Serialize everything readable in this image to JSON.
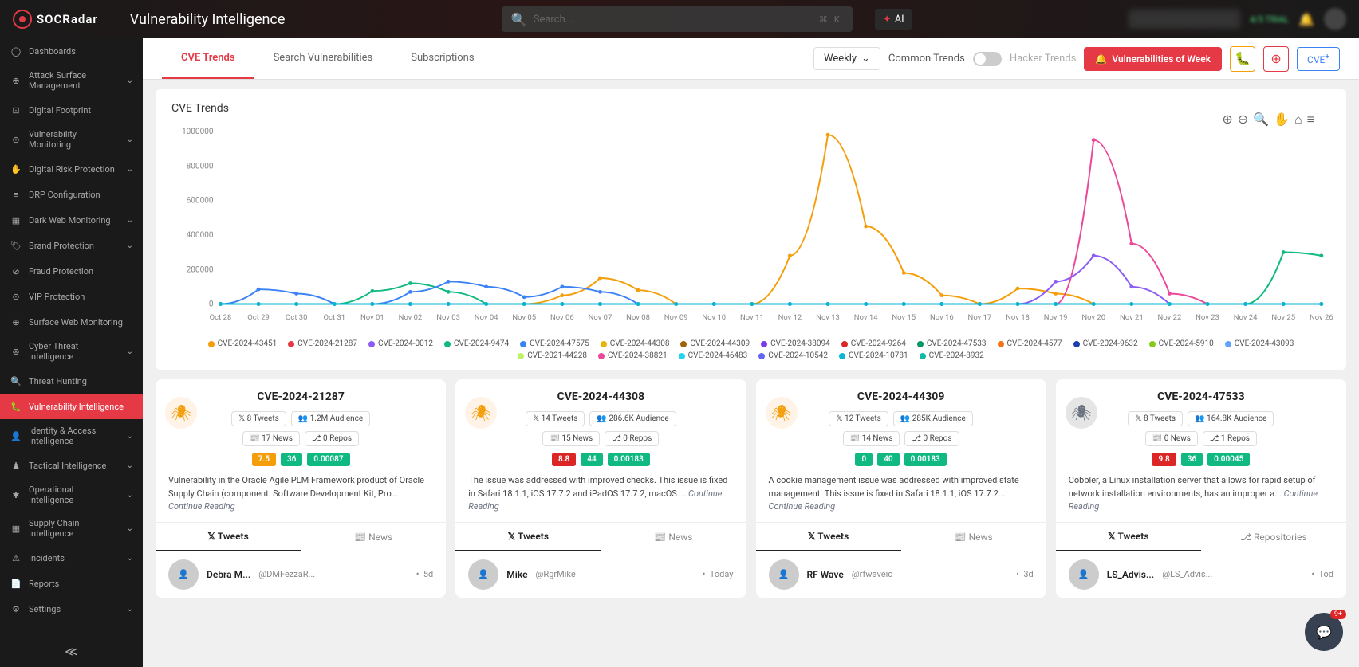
{
  "header": {
    "logo_text": "SOCRadar",
    "page_title": "Vulnerability Intelligence",
    "search_placeholder": "Search...",
    "search_hint_cmd": "⌘",
    "search_hint_k": "K",
    "ai_label": "AI",
    "trial_text": "4/5 TRIAL"
  },
  "sidebar": {
    "items": [
      {
        "label": "Dashboards",
        "icon": "◯",
        "chevron": false
      },
      {
        "label": "Attack Surface Management",
        "icon": "⊕",
        "chevron": true
      },
      {
        "label": "Digital Footprint",
        "icon": "⊡",
        "chevron": false
      },
      {
        "label": "Vulnerability Monitoring",
        "icon": "⊙",
        "chevron": true
      },
      {
        "label": "Digital Risk Protection",
        "icon": "✋",
        "chevron": true
      },
      {
        "label": "DRP Configuration",
        "icon": "≡",
        "chevron": false
      },
      {
        "label": "Dark Web Monitoring",
        "icon": "▦",
        "chevron": true
      },
      {
        "label": "Brand Protection",
        "icon": "🏷",
        "chevron": true
      },
      {
        "label": "Fraud Protection",
        "icon": "⊘",
        "chevron": false
      },
      {
        "label": "VIP Protection",
        "icon": "⊙",
        "chevron": false
      },
      {
        "label": "Surface Web Monitoring",
        "icon": "⊕",
        "chevron": false
      },
      {
        "label": "Cyber Threat Intelligence",
        "icon": "⊛",
        "chevron": true
      },
      {
        "label": "Threat Hunting",
        "icon": "🔍",
        "chevron": false
      },
      {
        "label": "Vulnerability Intelligence",
        "icon": "🐛",
        "chevron": false,
        "active": true
      },
      {
        "label": "Identity & Access Intelligence",
        "icon": "👤",
        "chevron": true
      },
      {
        "label": "Tactical Intelligence",
        "icon": "♟",
        "chevron": true
      },
      {
        "label": "Operational Intelligence",
        "icon": "✱",
        "chevron": true
      },
      {
        "label": "Supply Chain Intelligence",
        "icon": "▦",
        "chevron": true
      },
      {
        "label": "Incidents",
        "icon": "⚠",
        "chevron": true
      },
      {
        "label": "Reports",
        "icon": "📄",
        "chevron": false
      },
      {
        "label": "Settings",
        "icon": "⚙",
        "chevron": true
      }
    ]
  },
  "tabs": {
    "items": [
      "CVE Trends",
      "Search Vulnerabilities",
      "Subscriptions"
    ],
    "active": "CVE Trends",
    "dropdown": "Weekly",
    "common_trends": "Common Trends",
    "hacker_trends": "Hacker Trends",
    "vuln_week": "Vulnerabilities of Week",
    "cve_plus": "CVE"
  },
  "chart": {
    "title": "CVE Trends",
    "y_ticks": [
      "1000000",
      "800000",
      "600000",
      "400000",
      "200000",
      "0"
    ],
    "x_ticks": [
      "Oct 28",
      "Oct 29",
      "Oct 30",
      "Oct 31",
      "Nov 01",
      "Nov 02",
      "Nov 03",
      "Nov 04",
      "Nov 05",
      "Nov 06",
      "Nov 07",
      "Nov 08",
      "Nov 09",
      "Nov 10",
      "Nov 11",
      "Nov 12",
      "Nov 13",
      "Nov 14",
      "Nov 15",
      "Nov 16",
      "Nov 17",
      "Nov 18",
      "Nov 19",
      "Nov 20",
      "Nov 21",
      "Nov 22",
      "Nov 23",
      "Nov 24",
      "Nov 25",
      "Nov 26"
    ],
    "ylim_max": 1000000,
    "legend": [
      {
        "label": "CVE-2024-43451",
        "color": "#f59e0b"
      },
      {
        "label": "CVE-2024-21287",
        "color": "#e63946"
      },
      {
        "label": "CVE-2024-0012",
        "color": "#8b5cf6"
      },
      {
        "label": "CVE-2024-9474",
        "color": "#10b981"
      },
      {
        "label": "CVE-2024-47575",
        "color": "#3b82f6"
      },
      {
        "label": "CVE-2024-44308",
        "color": "#eab308"
      },
      {
        "label": "CVE-2024-44309",
        "color": "#a16207"
      },
      {
        "label": "CVE-2024-38094",
        "color": "#7c3aed"
      },
      {
        "label": "CVE-2024-9264",
        "color": "#dc2626"
      },
      {
        "label": "CVE-2024-47533",
        "color": "#059669"
      },
      {
        "label": "CVE-2024-4577",
        "color": "#f97316"
      },
      {
        "label": "CVE-2024-9632",
        "color": "#1e40af"
      },
      {
        "label": "CVE-2024-5910",
        "color": "#84cc16"
      },
      {
        "label": "CVE-2024-43093",
        "color": "#60a5fa"
      },
      {
        "label": "CVE-2021-44228",
        "color": "#bef264"
      },
      {
        "label": "CVE-2024-38821",
        "color": "#ec4899"
      },
      {
        "label": "CVE-2024-46483",
        "color": "#22d3ee"
      },
      {
        "label": "CVE-2024-10542",
        "color": "#6366f1"
      },
      {
        "label": "CVE-2024-10781",
        "color": "#06b6d4"
      },
      {
        "label": "CVE-2024-8932",
        "color": "#14b8a6"
      }
    ],
    "series": [
      {
        "color": "#f59e0b",
        "data": [
          0,
          0,
          0,
          0,
          0,
          0,
          0,
          0,
          0,
          50000,
          150000,
          80000,
          0,
          0,
          0,
          280000,
          980000,
          450000,
          180000,
          50000,
          0,
          90000,
          60000,
          0,
          0,
          0,
          0,
          0,
          0,
          0
        ]
      },
      {
        "color": "#ec4899",
        "data": [
          0,
          0,
          0,
          0,
          0,
          0,
          0,
          0,
          0,
          0,
          0,
          0,
          0,
          0,
          0,
          0,
          0,
          0,
          0,
          0,
          0,
          0,
          0,
          950000,
          350000,
          60000,
          0,
          0,
          0,
          0
        ]
      },
      {
        "color": "#8b5cf6",
        "data": [
          0,
          0,
          0,
          0,
          0,
          0,
          0,
          0,
          0,
          0,
          0,
          0,
          0,
          0,
          0,
          0,
          0,
          0,
          0,
          0,
          0,
          0,
          130000,
          280000,
          100000,
          0,
          0,
          0,
          0,
          0
        ]
      },
      {
        "color": "#10b981",
        "data": [
          0,
          0,
          0,
          0,
          75000,
          120000,
          70000,
          0,
          0,
          0,
          0,
          0,
          0,
          0,
          0,
          0,
          0,
          0,
          0,
          0,
          0,
          0,
          0,
          0,
          0,
          0,
          0,
          0,
          300000,
          280000
        ]
      },
      {
        "color": "#3b82f6",
        "data": [
          0,
          85000,
          60000,
          0,
          0,
          70000,
          130000,
          100000,
          40000,
          100000,
          70000,
          0,
          0,
          0,
          0,
          0,
          0,
          0,
          0,
          0,
          0,
          0,
          0,
          0,
          0,
          0,
          0,
          0,
          0,
          0
        ]
      },
      {
        "color": "#14b8a6",
        "data": [
          0,
          0,
          0,
          0,
          0,
          0,
          0,
          0,
          0,
          0,
          0,
          0,
          0,
          0,
          0,
          0,
          0,
          0,
          0,
          0,
          0,
          0,
          0,
          0,
          0,
          0,
          0,
          0,
          0,
          0
        ]
      },
      {
        "color": "#06b6d4",
        "data": [
          0,
          0,
          0,
          0,
          0,
          0,
          0,
          0,
          0,
          0,
          0,
          0,
          0,
          0,
          0,
          0,
          0,
          0,
          0,
          0,
          0,
          0,
          0,
          0,
          0,
          0,
          0,
          0,
          0,
          0
        ]
      }
    ]
  },
  "cards": [
    {
      "id": "CVE-2024-21287",
      "bug_color": "#f59e0b",
      "tweets": "8 Tweets",
      "audience": "1.2M Audience",
      "news": "17 News",
      "repos": "0 Repos",
      "scores": [
        {
          "v": "7.5",
          "c": "orange"
        },
        {
          "v": "36",
          "c": "green"
        },
        {
          "v": "0.00087",
          "c": "green"
        }
      ],
      "desc": "Vulnerability in the Oracle Agile PLM Framework product of Oracle Supply Chain (component: Software Development Kit, Pro... ",
      "continue": "Continue Reading",
      "tabs": [
        "Tweets",
        "News"
      ],
      "active_tab": "Tweets",
      "tweet": {
        "name": "Debra M...",
        "handle": "@DMFezzaR...",
        "time": "5d"
      }
    },
    {
      "id": "CVE-2024-44308",
      "bug_color": "#f59e0b",
      "tweets": "14 Tweets",
      "audience": "286.6K Audience",
      "news": "15 News",
      "repos": "0 Repos",
      "scores": [
        {
          "v": "8.8",
          "c": "red"
        },
        {
          "v": "44",
          "c": "green"
        },
        {
          "v": "0.00183",
          "c": "green"
        }
      ],
      "desc": "The issue was addressed with improved checks. This issue is fixed in Safari 18.1.1, iOS 17.7.2 and iPadOS 17.7.2, macOS ... ",
      "continue": "Continue Reading",
      "tabs": [
        "Tweets",
        "News"
      ],
      "active_tab": "Tweets",
      "tweet": {
        "name": "Mike",
        "handle": "@RgrMike",
        "time": "Today"
      }
    },
    {
      "id": "CVE-2024-44309",
      "bug_color": "#f59e0b",
      "tweets": "12 Tweets",
      "audience": "285K Audience",
      "news": "14 News",
      "repos": "0 Repos",
      "scores": [
        {
          "v": "0",
          "c": "green"
        },
        {
          "v": "40",
          "c": "green"
        },
        {
          "v": "0.00183",
          "c": "green"
        }
      ],
      "desc": "A cookie management issue was addressed with improved state management. This issue is fixed in Safari 18.1.1, iOS 17.7.2... ",
      "continue": "Continue Reading",
      "tabs": [
        "Tweets",
        "News"
      ],
      "active_tab": "Tweets",
      "tweet": {
        "name": "RF Wave",
        "handle": "@rfwaveio",
        "time": "3d"
      }
    },
    {
      "id": "CVE-2024-47533",
      "bug_color": "#6b7280",
      "bug_gray": true,
      "tweets": "8 Tweets",
      "audience": "164.8K Audience",
      "news": "0 News",
      "repos": "1 Repos",
      "scores": [
        {
          "v": "9.8",
          "c": "red"
        },
        {
          "v": "36",
          "c": "green"
        },
        {
          "v": "0.00045",
          "c": "green"
        }
      ],
      "desc": "Cobbler, a Linux installation server that allows for rapid setup of network installation environments, has an improper a... ",
      "continue": "Continue Reading",
      "tabs": [
        "Tweets",
        "Repositories"
      ],
      "active_tab": "Tweets",
      "tweet": {
        "name": "LS_Advis...",
        "handle": "@LS_Advis...",
        "time": "Tod"
      }
    }
  ],
  "chat_badge": "9+"
}
